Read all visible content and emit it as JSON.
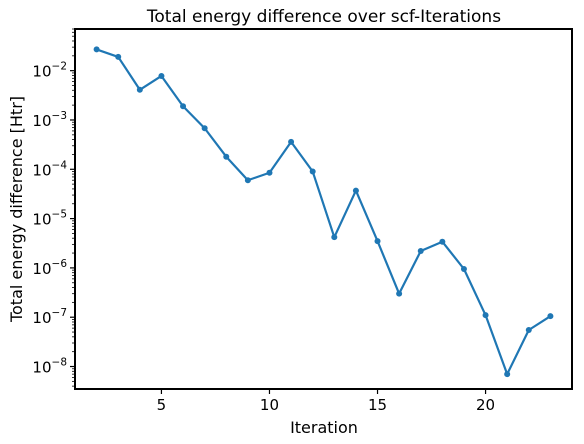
{
  "chart_data": {
    "type": "line",
    "title": "Total energy difference over scf-Iterations",
    "xlabel": "Iteration",
    "ylabel": "Total energy difference [Htr]",
    "yscale": "log",
    "xlim": [
      1.0,
      24.0
    ],
    "ylim": [
      3.5e-09,
      0.07
    ],
    "xticks": [
      5,
      10,
      15,
      20
    ],
    "yticks": [
      {
        "value": 1e-08,
        "base": "10",
        "exp": "−8"
      },
      {
        "value": 1e-07,
        "base": "10",
        "exp": "−7"
      },
      {
        "value": 1e-06,
        "base": "10",
        "exp": "−6"
      },
      {
        "value": 1e-05,
        "base": "10",
        "exp": "−5"
      },
      {
        "value": 0.0001,
        "base": "10",
        "exp": "−4"
      },
      {
        "value": 0.001,
        "base": "10",
        "exp": "−3"
      },
      {
        "value": 0.01,
        "base": "10",
        "exp": "−2"
      }
    ],
    "grid": false,
    "color": "#1f77b4",
    "series": [
      {
        "x": [
          2,
          3,
          4,
          5,
          6,
          7,
          8,
          9,
          10,
          11,
          12,
          13,
          14,
          15,
          16,
          17,
          18,
          19,
          20,
          21,
          22,
          23
        ],
        "y": [
          0.027,
          0.019,
          0.0041,
          0.0078,
          0.0019,
          0.00068,
          0.00018,
          6e-05,
          8.5e-05,
          0.00036,
          9e-05,
          4.2e-06,
          3.7e-05,
          3.5e-06,
          3e-07,
          2.2e-06,
          3.4e-06,
          9.5e-07,
          1.1e-07,
          7e-09,
          5.5e-08,
          1.05e-07
        ]
      }
    ]
  }
}
